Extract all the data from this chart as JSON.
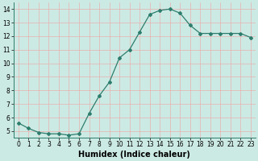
{
  "x": [
    0,
    1,
    2,
    3,
    4,
    5,
    6,
    7,
    8,
    9,
    10,
    11,
    12,
    13,
    14,
    15,
    16,
    17,
    18,
    19,
    20,
    21,
    22,
    23
  ],
  "y": [
    5.6,
    5.2,
    4.9,
    4.8,
    4.8,
    4.7,
    4.8,
    6.3,
    7.6,
    8.6,
    10.4,
    11.0,
    12.3,
    13.6,
    13.9,
    14.0,
    13.7,
    12.8,
    12.2,
    12.2,
    12.2,
    12.2,
    12.2,
    11.9
  ],
  "line_color": "#2d7d6d",
  "marker": "D",
  "marker_size": 2.0,
  "linewidth": 0.9,
  "xlabel": "Humidex (Indice chaleur)",
  "xlabel_fontsize": 7,
  "xlabel_bold": true,
  "ylim": [
    4.5,
    14.5
  ],
  "xlim": [
    -0.5,
    23.5
  ],
  "yticks": [
    5,
    6,
    7,
    8,
    9,
    10,
    11,
    12,
    13,
    14
  ],
  "xticks": [
    0,
    1,
    2,
    3,
    4,
    5,
    6,
    7,
    8,
    9,
    10,
    11,
    12,
    13,
    14,
    15,
    16,
    17,
    18,
    19,
    20,
    21,
    22,
    23
  ],
  "tick_fontsize": 5.5,
  "bg_color": "#cceae4",
  "grid_color": "#e8b0b0",
  "grid_linewidth": 0.5
}
